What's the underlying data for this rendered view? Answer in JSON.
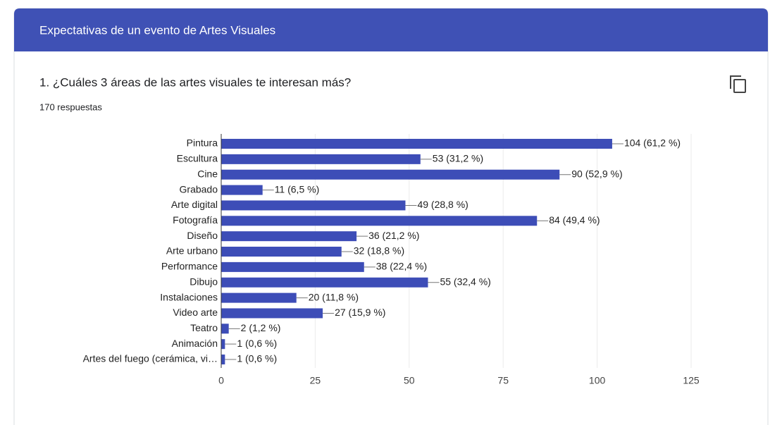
{
  "header": {
    "title": "Expectativas de un evento de Artes Visuales"
  },
  "chart_data": {
    "type": "hbar",
    "title": "1. ¿Cuáles 3 áreas de las artes visuales te interesan más?",
    "subtitle": "170 respuestas",
    "categories": [
      "Pintura",
      "Escultura",
      "Cine",
      "Grabado",
      "Arte digital",
      "Fotografía",
      "Diseño",
      "Arte urbano",
      "Performance",
      "Dibujo",
      "Instalaciones",
      "Video arte",
      "Teatro",
      "Animación",
      "Artes del fuego (cerámica, vi…"
    ],
    "values": [
      104,
      53,
      90,
      11,
      49,
      84,
      36,
      32,
      38,
      55,
      20,
      27,
      2,
      1,
      1
    ],
    "value_labels": [
      "104 (61,2 %)",
      "53 (31,2 %)",
      "90 (52,9 %)",
      "11 (6,5 %)",
      "49 (28,8 %)",
      "84 (49,4 %)",
      "36 (21,2 %)",
      "32 (18,8 %)",
      "38 (22,4 %)",
      "55 (32,4 %)",
      "20 (11,8 %)",
      "27 (15,9 %)",
      "2 (1,2 %)",
      "1 (0,6 %)",
      "1 (0,6 %)"
    ],
    "color": "#3d4db7",
    "xlim": [
      0,
      125
    ],
    "xticks": [
      0,
      25,
      50,
      75,
      100,
      125
    ],
    "grid": true
  }
}
